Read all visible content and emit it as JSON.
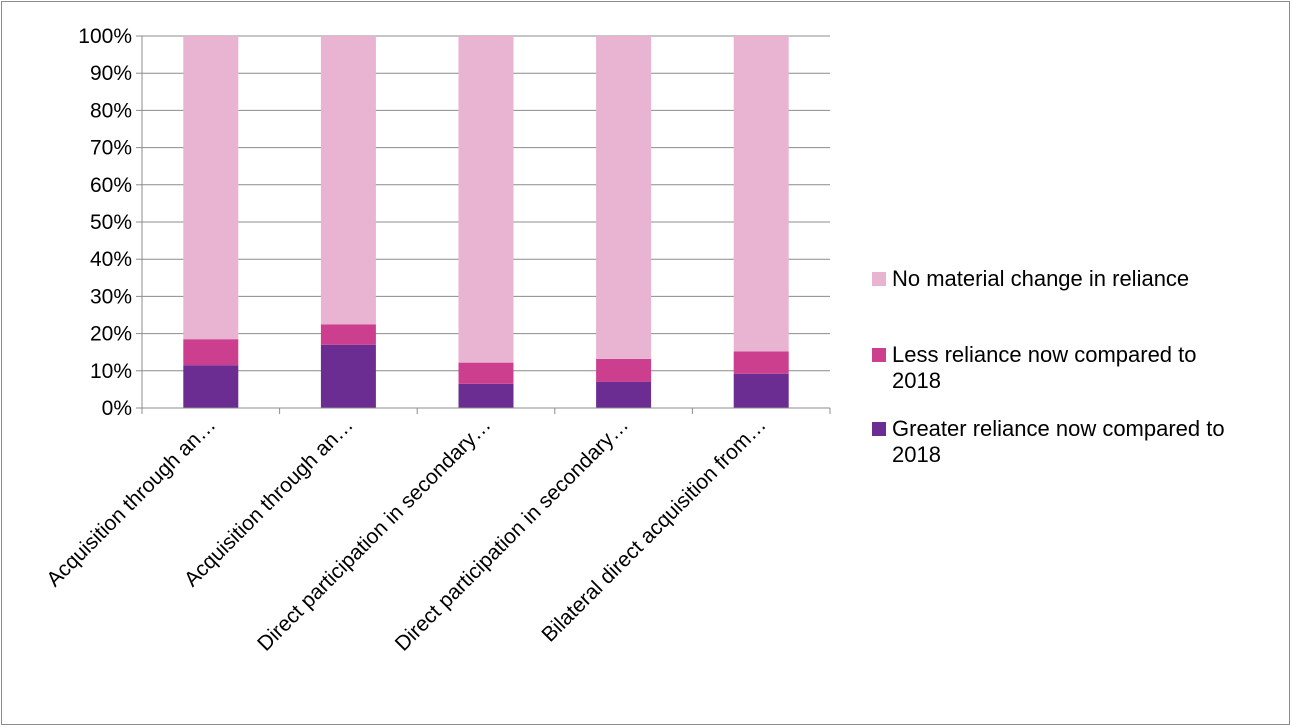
{
  "chart_data": {
    "type": "bar",
    "stacked": true,
    "percent_stacked": true,
    "categories": [
      "Acquisition through an…",
      "Acquisition through an…",
      "Direct participation in secondary…",
      "Direct participation in secondary…",
      "Bilateral direct acquisition from…"
    ],
    "series": [
      {
        "name": "Greater reliance now compared to 2018",
        "color": "#6b2d91",
        "values": [
          11.5,
          17,
          6.5,
          7,
          9.2
        ]
      },
      {
        "name": "Less reliance now compared to 2018",
        "color": "#cc3f8f",
        "values": [
          7,
          5.5,
          5.7,
          6.2,
          6
        ]
      },
      {
        "name": "No material change in reliance",
        "color": "#e8b4d1",
        "values": [
          81.5,
          77.5,
          87.8,
          86.8,
          84.8
        ]
      }
    ],
    "y_ticks": [
      "0%",
      "10%",
      "20%",
      "30%",
      "40%",
      "50%",
      "60%",
      "70%",
      "80%",
      "90%",
      "100%"
    ],
    "ylim": [
      0,
      100
    ],
    "grid": true,
    "legend_position": "right",
    "legend": [
      {
        "label": "No material change in reliance",
        "color": "#e8b4d1"
      },
      {
        "label": "Less reliance now compared to 2018",
        "color": "#cc3f8f"
      },
      {
        "label": "Greater reliance now compared to 2018",
        "color": "#6b2d91"
      }
    ]
  }
}
